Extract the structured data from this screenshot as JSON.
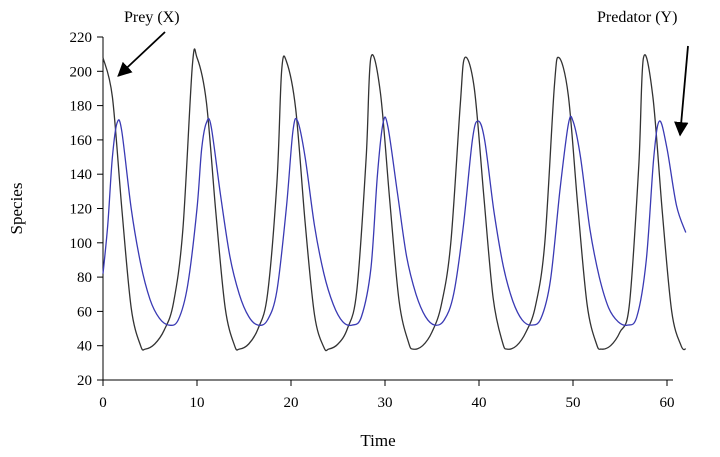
{
  "chart_data": {
    "type": "line",
    "title": "",
    "xlabel": "Time",
    "ylabel": "Species",
    "xlim": [
      0,
      60
    ],
    "ylim": [
      20,
      220
    ],
    "x_ticks": [
      0,
      10,
      20,
      30,
      40,
      50,
      60
    ],
    "y_ticks": [
      20,
      40,
      60,
      80,
      100,
      120,
      140,
      160,
      180,
      200,
      220
    ],
    "grid": false,
    "legend": "none",
    "series": [
      {
        "name": "Prey (X)",
        "color": "#333333",
        "points": [
          [
            0,
            208
          ],
          [
            1,
            185
          ],
          [
            2,
            120
          ],
          [
            3,
            62
          ],
          [
            4,
            40
          ],
          [
            4.5,
            38
          ],
          [
            5.5,
            41
          ],
          [
            6.5,
            49
          ],
          [
            7.5,
            65
          ],
          [
            8.5,
            108
          ],
          [
            9.5,
            203
          ],
          [
            10,
            208
          ],
          [
            11,
            182
          ],
          [
            12,
            118
          ],
          [
            13,
            62
          ],
          [
            14,
            40
          ],
          [
            14.5,
            38
          ],
          [
            15.5,
            41
          ],
          [
            16.5,
            50
          ],
          [
            17.5,
            70
          ],
          [
            18.5,
            135
          ],
          [
            19,
            200
          ],
          [
            19.5,
            206
          ],
          [
            20.5,
            178
          ],
          [
            21.5,
            112
          ],
          [
            22.5,
            58
          ],
          [
            23.5,
            39
          ],
          [
            24,
            38
          ],
          [
            25,
            41
          ],
          [
            26,
            50
          ],
          [
            27,
            72
          ],
          [
            28,
            150
          ],
          [
            28.5,
            208
          ],
          [
            29.5,
            188
          ],
          [
            30.5,
            125
          ],
          [
            31.5,
            66
          ],
          [
            32.5,
            42
          ],
          [
            33,
            38
          ],
          [
            34,
            40
          ],
          [
            35,
            48
          ],
          [
            36,
            64
          ],
          [
            37,
            100
          ],
          [
            38,
            180
          ],
          [
            38.5,
            208
          ],
          [
            39.5,
            190
          ],
          [
            40.5,
            128
          ],
          [
            41.5,
            68
          ],
          [
            42.5,
            42
          ],
          [
            43,
            38
          ],
          [
            44,
            40
          ],
          [
            45,
            48
          ],
          [
            46,
            63
          ],
          [
            47,
            100
          ],
          [
            48,
            190
          ],
          [
            48.5,
            208
          ],
          [
            49.5,
            186
          ],
          [
            50.5,
            122
          ],
          [
            51.5,
            64
          ],
          [
            52.5,
            41
          ],
          [
            53,
            38
          ],
          [
            54,
            40
          ],
          [
            55,
            48
          ],
          [
            56,
            64
          ],
          [
            57,
            145
          ],
          [
            57.5,
            208
          ],
          [
            58.5,
            185
          ],
          [
            59.5,
            118
          ],
          [
            60.5,
            60
          ],
          [
            61.5,
            40
          ],
          [
            62,
            38
          ]
        ]
      },
      {
        "name": "Predator (Y)",
        "color": "#3a3ab4",
        "points": [
          [
            0,
            82
          ],
          [
            0.5,
            110
          ],
          [
            1,
            150
          ],
          [
            1.5,
            170
          ],
          [
            2,
            165
          ],
          [
            3,
            120
          ],
          [
            4,
            88
          ],
          [
            5,
            67
          ],
          [
            6,
            56
          ],
          [
            7,
            52
          ],
          [
            8,
            55
          ],
          [
            9,
            75
          ],
          [
            10,
            120
          ],
          [
            10.5,
            155
          ],
          [
            11,
            170
          ],
          [
            11.5,
            168
          ],
          [
            12.5,
            128
          ],
          [
            13.5,
            92
          ],
          [
            14.5,
            70
          ],
          [
            15.5,
            57
          ],
          [
            16.5,
            52
          ],
          [
            17.5,
            55
          ],
          [
            18.5,
            72
          ],
          [
            19.5,
            120
          ],
          [
            20.2,
            165
          ],
          [
            20.7,
            171
          ],
          [
            21.5,
            150
          ],
          [
            22.5,
            110
          ],
          [
            23.5,
            82
          ],
          [
            24.5,
            64
          ],
          [
            25.5,
            54
          ],
          [
            26.5,
            52
          ],
          [
            27.5,
            57
          ],
          [
            28.5,
            85
          ],
          [
            29.2,
            140
          ],
          [
            29.8,
            170
          ],
          [
            30.3,
            168
          ],
          [
            31.3,
            130
          ],
          [
            32.3,
            92
          ],
          [
            33.3,
            70
          ],
          [
            34.3,
            57
          ],
          [
            35.3,
            52
          ],
          [
            36.3,
            55
          ],
          [
            37.3,
            70
          ],
          [
            38.3,
            108
          ],
          [
            39.3,
            160
          ],
          [
            39.9,
            171
          ],
          [
            40.6,
            160
          ],
          [
            41.6,
            118
          ],
          [
            42.6,
            86
          ],
          [
            43.6,
            66
          ],
          [
            44.6,
            55
          ],
          [
            45.6,
            52
          ],
          [
            46.6,
            56
          ],
          [
            47.6,
            78
          ],
          [
            48.6,
            130
          ],
          [
            49.5,
            169
          ],
          [
            50,
            171
          ],
          [
            50.8,
            150
          ],
          [
            51.8,
            108
          ],
          [
            52.8,
            80
          ],
          [
            53.8,
            62
          ],
          [
            54.8,
            54
          ],
          [
            55.8,
            52
          ],
          [
            56.8,
            57
          ],
          [
            57.8,
            90
          ],
          [
            58.6,
            150
          ],
          [
            59.2,
            171
          ],
          [
            60,
            155
          ],
          [
            61,
            122
          ],
          [
            62,
            106
          ]
        ]
      }
    ],
    "annotations": [
      {
        "text": "Prey (X)",
        "target": [
          1.2,
          195
        ]
      },
      {
        "text": "Predator (Y)",
        "target": [
          61.5,
          164
        ]
      }
    ]
  }
}
